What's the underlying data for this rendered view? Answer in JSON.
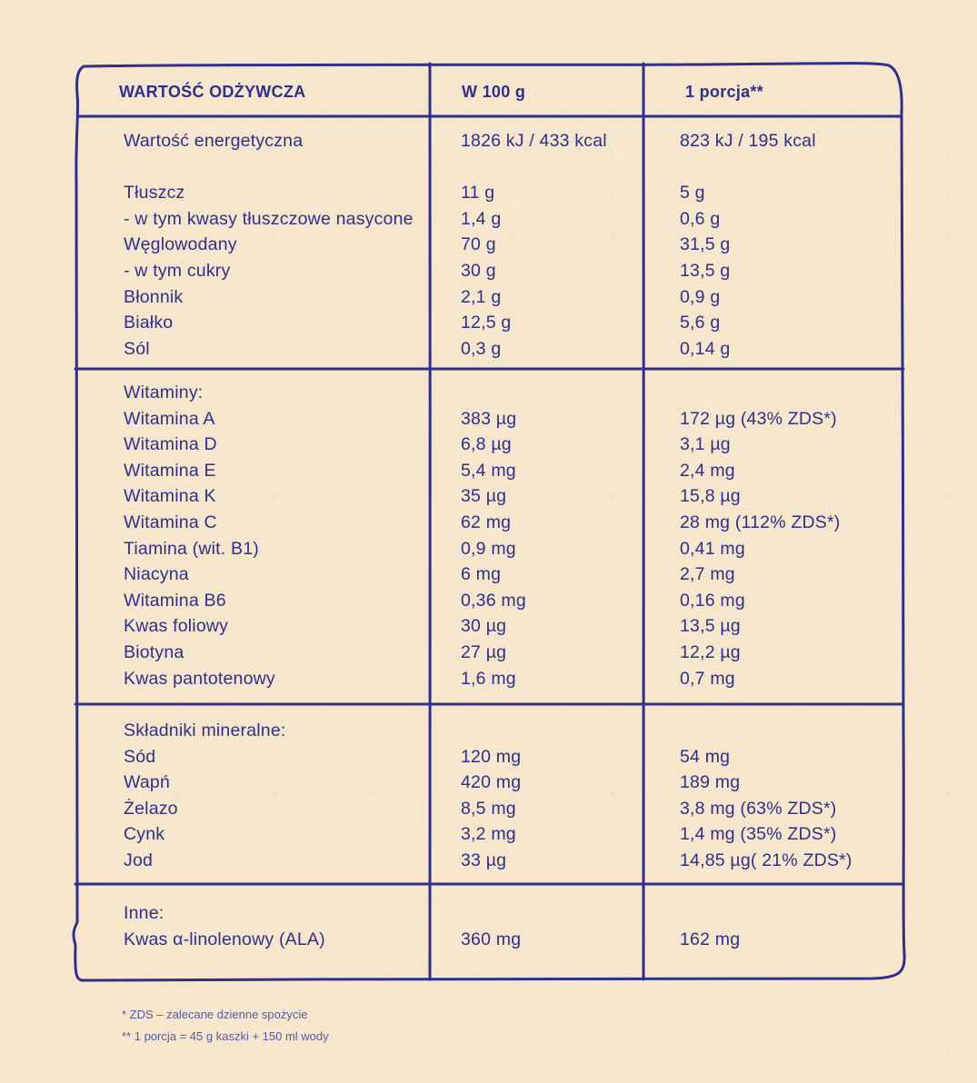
{
  "colors": {
    "ink": "#2e2f8f",
    "paper": "#f6e6cc"
  },
  "header": {
    "col1": "WARTOŚĆ ODŻYWCZA",
    "col2": "W 100 g",
    "col3": "1 porcja**"
  },
  "sections": [
    {
      "rows": [
        {
          "name": "Wartość energetyczna",
          "per100": "1826 kJ / 433 kcal",
          "portion": "823 kJ / 195 kcal"
        },
        {
          "name": "",
          "per100": "",
          "portion": ""
        },
        {
          "name": "Tłuszcz",
          "per100": "11 g",
          "portion": "5 g"
        },
        {
          "name": "- w tym kwasy tłuszczowe nasycone",
          "per100": "1,4 g",
          "portion": "0,6 g"
        },
        {
          "name": "Węglowodany",
          "per100": "70 g",
          "portion": "31,5 g"
        },
        {
          "name": "- w tym cukry",
          "per100": "30 g",
          "portion": "13,5 g"
        },
        {
          "name": "Błonnik",
          "per100": "2,1 g",
          "portion": "0,9 g"
        },
        {
          "name": "Białko",
          "per100": "12,5 g",
          "portion": "5,6 g"
        },
        {
          "name": "Sól",
          "per100": "0,3 g",
          "portion": "0,14 g"
        }
      ]
    },
    {
      "rows": [
        {
          "name": "Witaminy:",
          "per100": "",
          "portion": ""
        },
        {
          "name": "Witamina A",
          "per100": "383 µg",
          "portion": "172 µg (43% ZDS*)"
        },
        {
          "name": "Witamina D",
          "per100": "6,8 µg",
          "portion": "3,1 µg"
        },
        {
          "name": "Witamina E",
          "per100": "5,4 mg",
          "portion": "2,4 mg"
        },
        {
          "name": "Witamina K",
          "per100": "35 µg",
          "portion": "15,8 µg"
        },
        {
          "name": "Witamina C",
          "per100": "62 mg",
          "portion": "28 mg (112% ZDS*)"
        },
        {
          "name": "Tiamina (wit. B1)",
          "per100": "0,9 mg",
          "portion": "0,41 mg"
        },
        {
          "name": "Niacyna",
          "per100": "6 mg",
          "portion": "2,7 mg"
        },
        {
          "name": "Witamina B6",
          "per100": "0,36 mg",
          "portion": "0,16 mg"
        },
        {
          "name": "Kwas foliowy",
          "per100": "30 µg",
          "portion": "13,5 µg"
        },
        {
          "name": "Biotyna",
          "per100": "27 µg",
          "portion": "12,2 µg"
        },
        {
          "name": "Kwas pantotenowy",
          "per100": "1,6 mg",
          "portion": "0,7 mg"
        }
      ]
    },
    {
      "rows": [
        {
          "name": "Składniki mineralne:",
          "per100": "",
          "portion": ""
        },
        {
          "name": "Sód",
          "per100": "120 mg",
          "portion": "54 mg"
        },
        {
          "name": "Wapń",
          "per100": "420 mg",
          "portion": "189 mg"
        },
        {
          "name": "Żelazo",
          "per100": "8,5 mg",
          "portion": "3,8 mg (63% ZDS*)"
        },
        {
          "name": "Cynk",
          "per100": "3,2 mg",
          "portion": "1,4 mg (35% ZDS*)"
        },
        {
          "name": "Jod",
          "per100": "33 µg",
          "portion": "14,85 µg( 21% ZDS*)"
        }
      ]
    },
    {
      "rows": [
        {
          "name": "Inne:",
          "per100": "",
          "portion": ""
        },
        {
          "name": "Kwas α-linolenowy (ALA)",
          "per100": "360 mg",
          "portion": "162 mg"
        }
      ]
    }
  ],
  "footnotes": [
    "* ZDS – zalecane dzienne spożycie",
    "** 1 porcja = 45 g kaszki + 150 ml wody"
  ]
}
